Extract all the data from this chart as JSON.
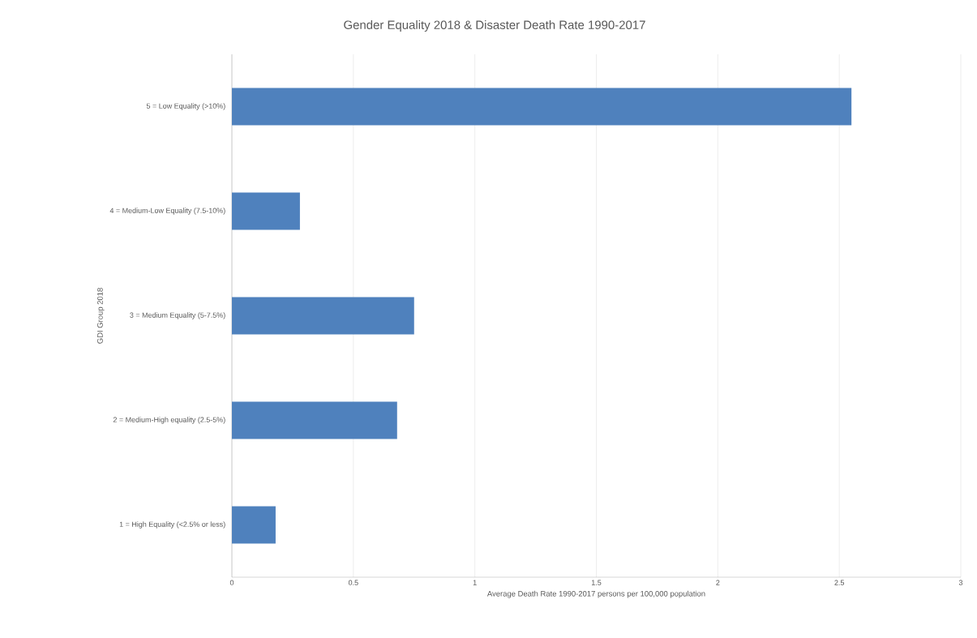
{
  "chart_data": {
    "type": "bar",
    "orientation": "horizontal",
    "title": "Gender Equality 2018 & Disaster Death Rate 1990-2017",
    "xlabel": "Average Death Rate 1990-2017 persons per 100,000 population",
    "ylabel": "GDI Group 2018",
    "categories": [
      "5 = Low Equality (>10%)",
      "4 = Medium-Low Equality (7.5-10%)",
      "3 = Medium Equality (5-7.5%)",
      "2 = Medium-High equality (2.5-5%)",
      "1 = High Equality (<2.5% or less)"
    ],
    "values": [
      2.55,
      0.28,
      0.75,
      0.68,
      0.18
    ],
    "color": "#4f81bd",
    "xlim": [
      0,
      3
    ],
    "xticks": [
      0,
      0.5,
      1,
      1.5,
      2,
      2.5,
      3
    ],
    "grid": "x"
  }
}
